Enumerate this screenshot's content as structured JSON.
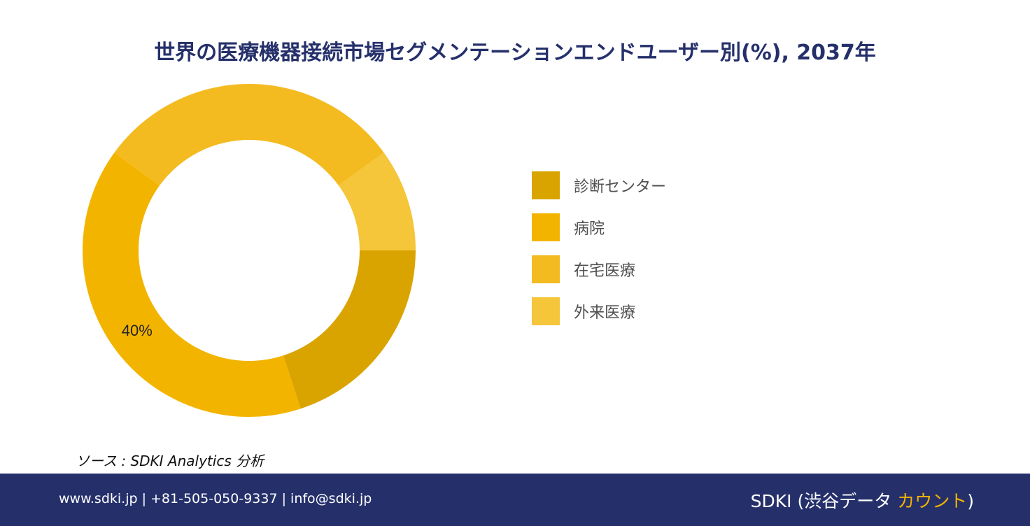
{
  "title": "世界の医療機器接続市場セグメンテーションエンドユーザー別(%), 2037年",
  "chart_data": {
    "type": "pie",
    "donut": true,
    "title": "世界の医療機器接続市場セグメンテーションエンドユーザー別(%), 2037年",
    "start": "3 o'clock",
    "direction": "clockwise",
    "slices": [
      {
        "label": "診断センター",
        "value": 20,
        "color": "#daa400",
        "data_label": ""
      },
      {
        "label": "病院",
        "value": 40,
        "color": "#f3b400",
        "data_label": "40%"
      },
      {
        "label": "在宅医療",
        "value": 30,
        "color": "#f3bb20",
        "data_label": ""
      },
      {
        "label": "外来医療",
        "value": 10,
        "color": "#f5c53a",
        "data_label": ""
      }
    ],
    "legend_position": "right"
  },
  "legend": [
    {
      "label": "診断センター",
      "color": "#daa400"
    },
    {
      "label": "病院",
      "color": "#f3b400"
    },
    {
      "label": "在宅医療",
      "color": "#f3bb20"
    },
    {
      "label": "外来医療",
      "color": "#f5c53a"
    }
  ],
  "source": "ソース : SDKI Analytics 分析",
  "footer": {
    "contact": "www.sdki.jp | +81-505-050-9337 | info@sdki.jp",
    "brand_main": "SDKI (渋谷データ ",
    "brand_accent": "カウント",
    "brand_end": ")",
    "background": "#25306b",
    "accent_color": "#f3b400"
  }
}
